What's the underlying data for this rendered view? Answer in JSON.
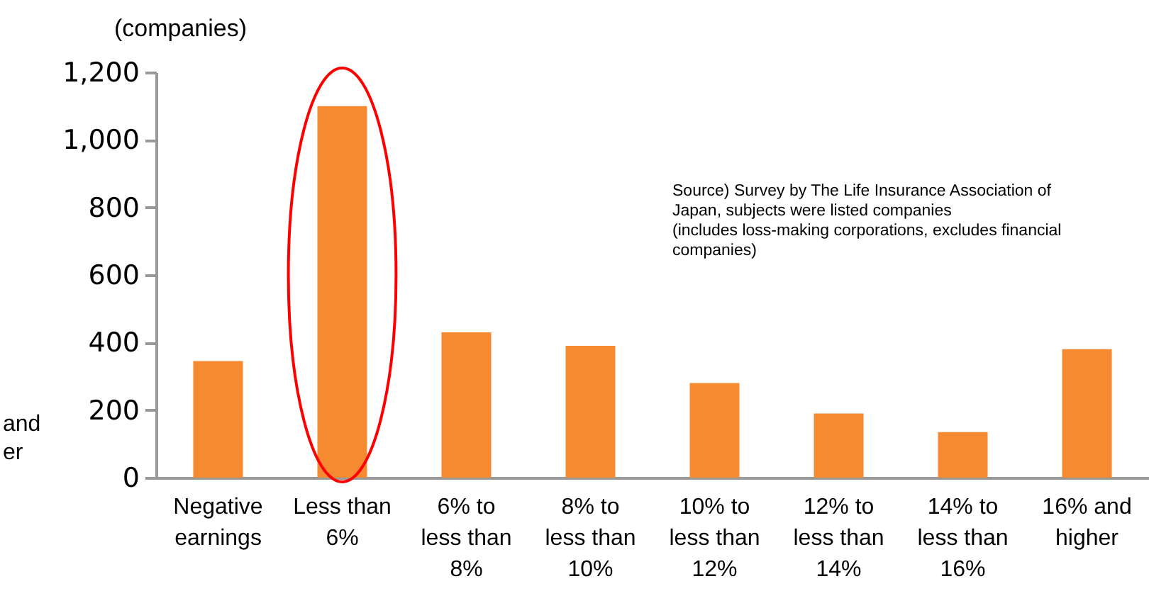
{
  "chart_data": {
    "type": "bar",
    "ylabel": "(companies)",
    "categories": [
      "Negative\nearnings",
      "Less than\n6%",
      "6% to\nless than\n8%",
      "8% to\nless than\n10%",
      "10% to\nless than\n12%",
      "12% to\nless than\n14%",
      "14% to\nless than\n16%",
      "16% and\nhigher"
    ],
    "values": [
      345,
      1100,
      430,
      390,
      280,
      190,
      135,
      380
    ],
    "color": "#f58a31",
    "ylim": [
      0,
      1200
    ],
    "yticks": [
      {
        "value": 0,
        "label": "0"
      },
      {
        "value": 200,
        "label": "200"
      },
      {
        "value": 400,
        "label": "400"
      },
      {
        "value": 600,
        "label": "600"
      },
      {
        "value": 800,
        "label": "800"
      },
      {
        "value": 1000,
        "label": "1,000"
      },
      {
        "value": 1200,
        "label": "1,200"
      }
    ],
    "annotations": [
      "Source) Survey by The Life Insurance Association of\nJapan, subjects were listed companies\n (includes loss-making corporations, excludes financial\ncompanies)",
      "and\ner"
    ]
  }
}
